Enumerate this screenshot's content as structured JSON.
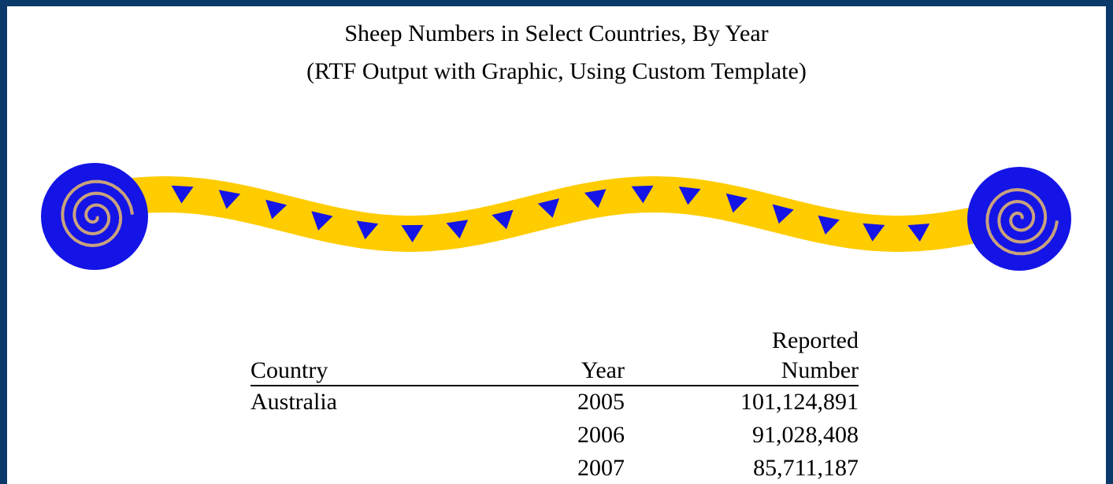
{
  "header": {
    "title": [
      "Sheep Numbers in Select Countries, By Year",
      "(RTF Output with Graphic, Using Custom Template)"
    ]
  },
  "table": {
    "columns": {
      "country": "Country",
      "year": "Year",
      "number": [
        "Reported",
        "Number"
      ]
    },
    "rows": [
      {
        "country": "Australia",
        "year": "2005",
        "number": "101,124,891"
      },
      {
        "year": "2006",
        "number": "91,028,408"
      },
      {
        "year": "2007",
        "number": "85,711,187"
      }
    ]
  }
}
